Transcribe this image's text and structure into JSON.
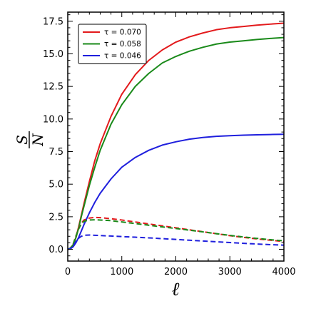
{
  "chart_data": {
    "type": "line",
    "title": "",
    "xlabel": "ℓ",
    "ylabel_numerator": "S",
    "ylabel_denominator": "N",
    "xlim": [
      0,
      4000
    ],
    "ylim": [
      -0.9,
      18.2
    ],
    "xticks": [
      0,
      1000,
      2000,
      3000,
      4000
    ],
    "xtick_labels": [
      "0",
      "1000",
      "2000",
      "3000",
      "4000"
    ],
    "yticks": [
      0.0,
      2.5,
      5.0,
      7.5,
      10.0,
      12.5,
      15.0,
      17.5
    ],
    "ytick_labels": [
      "0.0",
      "2.5",
      "5.0",
      "7.5",
      "10.0",
      "12.5",
      "15.0",
      "17.5"
    ],
    "grid": false,
    "legend_position": "top-left",
    "x": [
      0,
      50,
      100,
      150,
      200,
      250,
      300,
      400,
      500,
      600,
      800,
      1000,
      1250,
      1500,
      1750,
      2000,
      2250,
      2500,
      2750,
      3000,
      3250,
      3500,
      3750,
      4000
    ],
    "series": [
      {
        "name": "τ = 0.070",
        "color": "#e31a1c",
        "style": "solid",
        "values": [
          0.0,
          0.1,
          0.35,
          0.9,
          1.7,
          2.6,
          3.5,
          5.2,
          6.8,
          8.1,
          10.2,
          11.9,
          13.4,
          14.5,
          15.3,
          15.9,
          16.3,
          16.6,
          16.85,
          17.0,
          17.1,
          17.2,
          17.28,
          17.35
        ]
      },
      {
        "name": "τ = 0.058",
        "color": "#1a8a1a",
        "style": "solid",
        "values": [
          0.0,
          0.1,
          0.35,
          0.88,
          1.6,
          2.5,
          3.3,
          4.9,
          6.3,
          7.6,
          9.6,
          11.1,
          12.5,
          13.5,
          14.3,
          14.8,
          15.2,
          15.5,
          15.75,
          15.9,
          16.0,
          16.1,
          16.18,
          16.25
        ]
      },
      {
        "name": "τ = 0.046",
        "color": "#1f1fdd",
        "style": "solid",
        "values": [
          0.0,
          0.05,
          0.2,
          0.5,
          0.9,
          1.4,
          1.9,
          2.8,
          3.6,
          4.3,
          5.4,
          6.3,
          7.05,
          7.6,
          8.0,
          8.25,
          8.45,
          8.58,
          8.67,
          8.72,
          8.76,
          8.79,
          8.81,
          8.83
        ]
      },
      {
        "name": "",
        "color": "#e31a1c",
        "style": "dashed",
        "values": [
          0.0,
          0.1,
          0.4,
          1.0,
          1.6,
          2.0,
          2.25,
          2.4,
          2.45,
          2.43,
          2.35,
          2.25,
          2.1,
          1.95,
          1.8,
          1.65,
          1.5,
          1.35,
          1.2,
          1.05,
          0.92,
          0.8,
          0.7,
          0.6
        ]
      },
      {
        "name": "",
        "color": "#1a8a1a",
        "style": "dashed",
        "values": [
          0.0,
          0.1,
          0.4,
          1.0,
          1.55,
          1.95,
          2.15,
          2.25,
          2.27,
          2.25,
          2.2,
          2.1,
          1.98,
          1.85,
          1.72,
          1.6,
          1.47,
          1.34,
          1.2,
          1.07,
          0.95,
          0.84,
          0.74,
          0.65
        ]
      },
      {
        "name": "",
        "color": "#1f1fdd",
        "style": "dashed",
        "values": [
          0.0,
          0.05,
          0.25,
          0.6,
          0.85,
          1.0,
          1.08,
          1.1,
          1.08,
          1.06,
          1.02,
          0.98,
          0.93,
          0.88,
          0.82,
          0.76,
          0.7,
          0.64,
          0.58,
          0.52,
          0.46,
          0.41,
          0.36,
          0.32
        ]
      }
    ]
  }
}
